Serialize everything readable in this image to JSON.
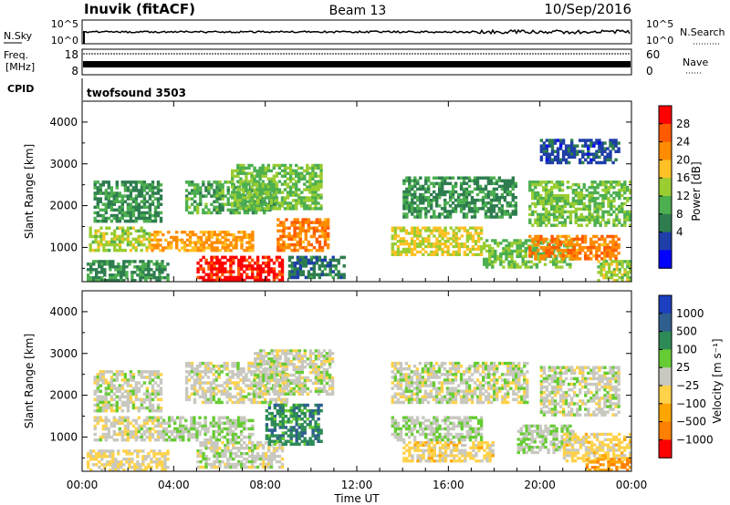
{
  "header": {
    "station": "Inuvik (fitACF)",
    "beam": "Beam 13",
    "date": "10/Sep/2016"
  },
  "summary_panels": {
    "nsky": {
      "label": "N.Sky",
      "ticks": [
        "10^5",
        "10^0"
      ],
      "right_label": "N.Search",
      "right_ticks": [
        "10^5",
        "10^0"
      ]
    },
    "freq": {
      "label_line1": "Freq.",
      "label_line2": "[MHz]",
      "ticks": [
        "18",
        "8"
      ],
      "right_label": "Nave",
      "right_ticks": [
        "60",
        "0"
      ]
    },
    "cpid": {
      "label": "CPID",
      "value": "twofsound 3503"
    }
  },
  "colors": {
    "power_scale": [
      "#0000ff",
      "#1e3ea8",
      "#2e7d4f",
      "#4caf50",
      "#9acd32",
      "#ffc125",
      "#ff8c00",
      "#ff5a00",
      "#ff0000"
    ],
    "velocity_scale": [
      "#1e3fbf",
      "#2f5f8f",
      "#2e8b57",
      "#66cc33",
      "#c8c8c0",
      "#ffd24a",
      "#ffa500",
      "#ff7f00",
      "#ff0000"
    ]
  },
  "chart_data": [
    {
      "type": "heatmap",
      "name_printed": "",
      "xlabel": "Time UT",
      "ylabel": "Slant Range [km]",
      "x_ticks": [
        "00:00",
        "04:00",
        "08:00",
        "12:00",
        "16:00",
        "20:00",
        "00:00"
      ],
      "xlim_hours": [
        0,
        24
      ],
      "ylim": [
        180,
        4500
      ],
      "y_ticks": [
        1000,
        2000,
        3000,
        4000
      ],
      "colorbar": {
        "label": "Power [dB]",
        "range": [
          0,
          32
        ],
        "tick_labels": [
          "28",
          "24",
          "20",
          "16",
          "12",
          "8",
          "4"
        ]
      },
      "regions": [
        {
          "x0": 0.2,
          "x1": 3.8,
          "y0": 180,
          "y1": 700,
          "value": 10
        },
        {
          "x0": 0.3,
          "x1": 3.0,
          "y0": 900,
          "y1": 1500,
          "value": 16
        },
        {
          "x0": 0.5,
          "x1": 3.5,
          "y0": 1600,
          "y1": 2600,
          "value": 10
        },
        {
          "x0": 3.0,
          "x1": 7.5,
          "y0": 900,
          "y1": 1400,
          "value": 22
        },
        {
          "x0": 4.5,
          "x1": 8.5,
          "y0": 1800,
          "y1": 2600,
          "value": 12
        },
        {
          "x0": 5.0,
          "x1": 8.8,
          "y0": 180,
          "y1": 800,
          "value": 30
        },
        {
          "x0": 8.5,
          "x1": 10.8,
          "y0": 900,
          "y1": 1700,
          "value": 24
        },
        {
          "x0": 6.5,
          "x1": 10.5,
          "y0": 1900,
          "y1": 3000,
          "value": 14
        },
        {
          "x0": 9.0,
          "x1": 11.5,
          "y0": 250,
          "y1": 800,
          "value": 8
        },
        {
          "x0": 13.5,
          "x1": 17.5,
          "y0": 800,
          "y1": 1500,
          "value": 18
        },
        {
          "x0": 14.0,
          "x1": 19.0,
          "y0": 1700,
          "y1": 2700,
          "value": 10
        },
        {
          "x0": 17.5,
          "x1": 21.5,
          "y0": 500,
          "y1": 1200,
          "value": 14
        },
        {
          "x0": 19.5,
          "x1": 23.5,
          "y0": 700,
          "y1": 1300,
          "value": 24
        },
        {
          "x0": 19.5,
          "x1": 24.0,
          "y0": 1500,
          "y1": 2600,
          "value": 14
        },
        {
          "x0": 20.0,
          "x1": 23.5,
          "y0": 3000,
          "y1": 3600,
          "value": 6
        },
        {
          "x0": 22.5,
          "x1": 24.0,
          "y0": 180,
          "y1": 700,
          "value": 16
        }
      ]
    },
    {
      "type": "heatmap",
      "name_printed": "",
      "xlabel": "Time UT",
      "ylabel": "Slant Range [km]",
      "x_ticks": [
        "00:00",
        "04:00",
        "08:00",
        "12:00",
        "16:00",
        "20:00",
        "00:00"
      ],
      "xlim_hours": [
        0,
        24
      ],
      "ylim": [
        180,
        4500
      ],
      "y_ticks": [
        1000,
        2000,
        3000,
        4000
      ],
      "colorbar": {
        "label": "Velocity [m s⁻¹]",
        "range": [
          -1500,
          1500
        ],
        "tick_labels": [
          "1000",
          "500",
          "100",
          "25",
          "−25",
          "−100",
          "−500",
          "−1000"
        ]
      },
      "regions": [
        {
          "x0": 0.2,
          "x1": 3.8,
          "y0": 180,
          "y1": 700,
          "value": -200
        },
        {
          "x0": 0.5,
          "x1": 3.5,
          "y0": 900,
          "y1": 1500,
          "value": -60
        },
        {
          "x0": 0.5,
          "x1": 3.5,
          "y0": 1600,
          "y1": 2600,
          "value": 0
        },
        {
          "x0": 3.5,
          "x1": 7.5,
          "y0": 900,
          "y1": 1500,
          "value": 150
        },
        {
          "x0": 4.5,
          "x1": 9.0,
          "y0": 1800,
          "y1": 2800,
          "value": 0
        },
        {
          "x0": 5.0,
          "x1": 8.8,
          "y0": 250,
          "y1": 900,
          "value": 0
        },
        {
          "x0": 8.0,
          "x1": 10.5,
          "y0": 800,
          "y1": 1800,
          "value": 700
        },
        {
          "x0": 7.5,
          "x1": 11.0,
          "y0": 2000,
          "y1": 3100,
          "value": 0
        },
        {
          "x0": 13.5,
          "x1": 17.5,
          "y0": 900,
          "y1": 1500,
          "value": 120
        },
        {
          "x0": 13.5,
          "x1": 19.5,
          "y0": 1800,
          "y1": 2800,
          "value": 0
        },
        {
          "x0": 14.0,
          "x1": 18.0,
          "y0": 400,
          "y1": 900,
          "value": -300
        },
        {
          "x0": 19.0,
          "x1": 21.5,
          "y0": 600,
          "y1": 1300,
          "value": 100
        },
        {
          "x0": 20.0,
          "x1": 23.5,
          "y0": 1500,
          "y1": 2700,
          "value": 0
        },
        {
          "x0": 21.0,
          "x1": 24.0,
          "y0": 400,
          "y1": 1100,
          "value": -300
        },
        {
          "x0": 22.0,
          "x1": 24.0,
          "y0": 180,
          "y1": 500,
          "value": -700
        }
      ]
    }
  ]
}
